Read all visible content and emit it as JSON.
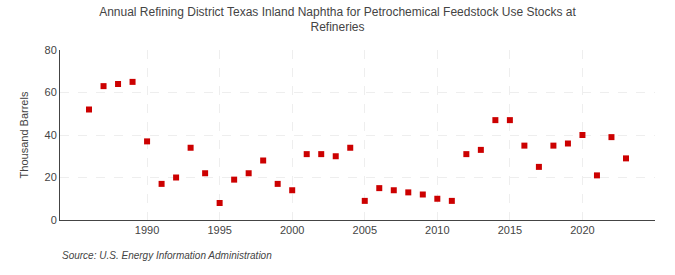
{
  "chart_data": {
    "type": "scatter",
    "title": "Annual Refining District Texas Inland Naphtha for Petrochemical Feedstock Use Stocks at\nRefineries",
    "ylabel": "Thousand Barrels",
    "annotations": [
      "Source: U.S. Energy Information Administration"
    ],
    "x": [
      1986,
      1987,
      1988,
      1989,
      1990,
      1991,
      1992,
      1993,
      1994,
      1995,
      1996,
      1997,
      1998,
      1999,
      2000,
      2001,
      2002,
      2003,
      2004,
      2005,
      2006,
      2007,
      2008,
      2009,
      2010,
      2011,
      2012,
      2013,
      2014,
      2015,
      2016,
      2017,
      2018,
      2019,
      2020,
      2021,
      2022,
      2023
    ],
    "values": [
      52,
      63,
      64,
      65,
      37,
      17,
      20,
      34,
      22,
      8,
      19,
      22,
      28,
      17,
      14,
      31,
      31,
      30,
      34,
      9,
      15,
      14,
      13,
      12,
      10,
      9,
      31,
      33,
      47,
      47,
      35,
      25,
      35,
      36,
      40,
      21,
      39,
      29
    ],
    "color": "#cc0000",
    "marker": "square",
    "xlim": [
      1984,
      2025
    ],
    "ylim": [
      0,
      80
    ],
    "xticks": [
      1990,
      1995,
      2000,
      2005,
      2010,
      2015,
      2020
    ],
    "yticks": [
      0,
      20,
      40,
      60,
      80
    ],
    "grid": true
  }
}
